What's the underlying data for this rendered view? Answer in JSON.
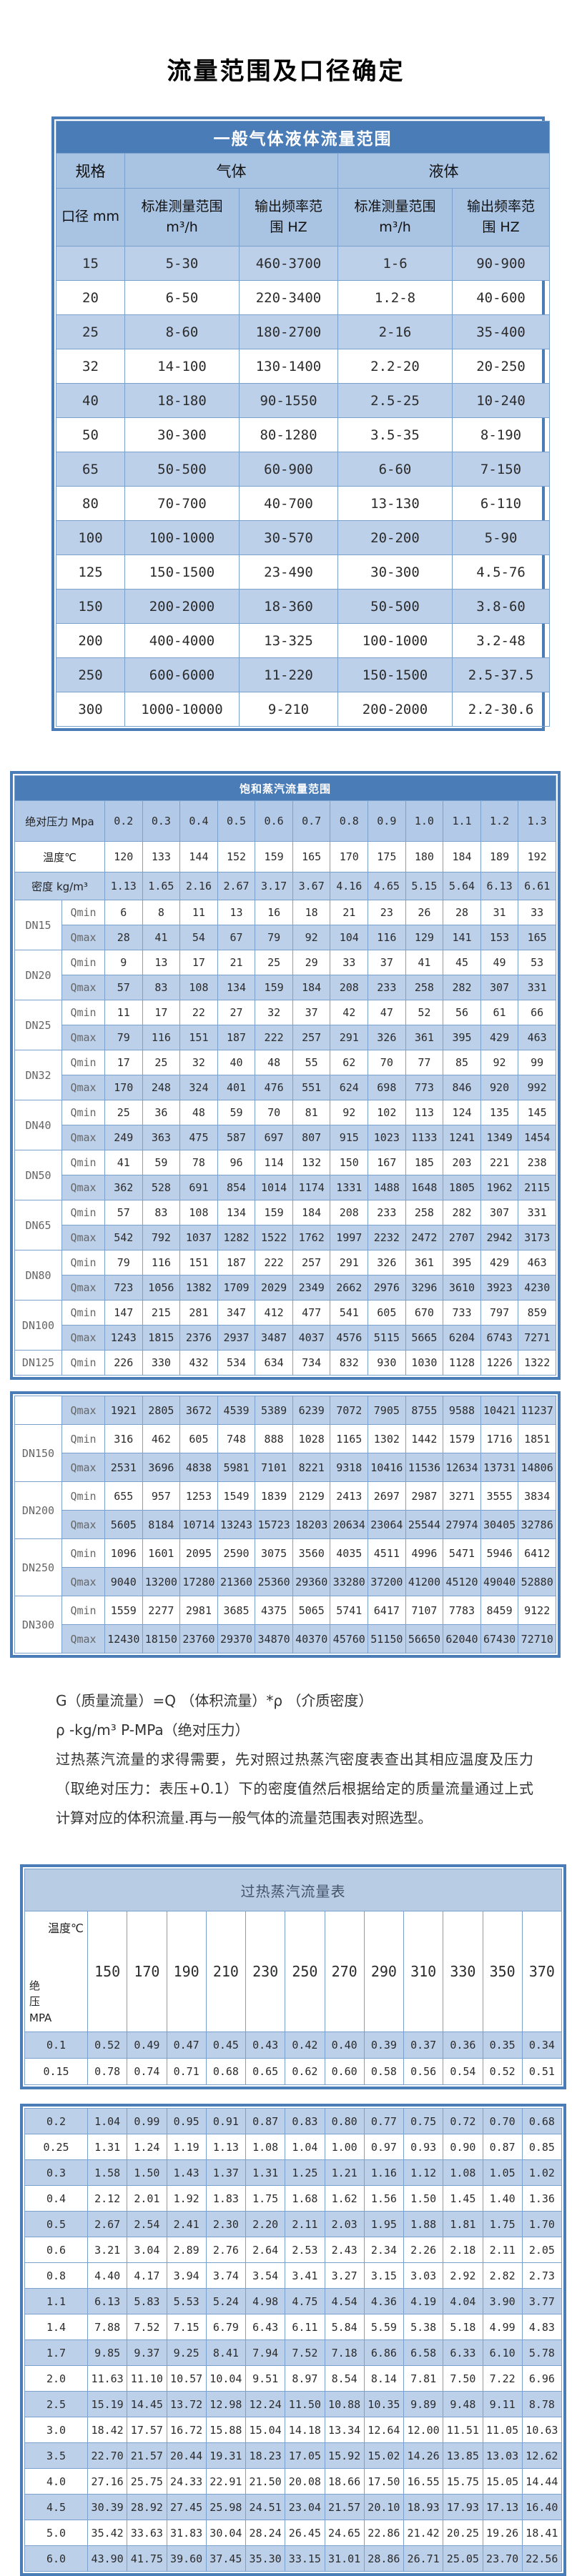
{
  "page_title": "流量范围及口径确定",
  "table_gas_liquid": {
    "title": "一般气体液体流量范围",
    "spec_label": "规格",
    "gas_label": "气体",
    "liquid_label": "液体",
    "diameter_label": "口径 mm",
    "col_headers": [
      "标准测量范围\nm³/h",
      "输出频率范\n围 HZ",
      "标准测量范围\nm³/h",
      "输出频率范\n围 HZ"
    ],
    "rows": [
      [
        "15",
        "5-30",
        "460-3700",
        "1-6",
        "90-900"
      ],
      [
        "20",
        "6-50",
        "220-3400",
        "1.2-8",
        "40-600"
      ],
      [
        "25",
        "8-60",
        "180-2700",
        "2-16",
        "35-400"
      ],
      [
        "32",
        "14-100",
        "130-1400",
        "2.2-20",
        "20-250"
      ],
      [
        "40",
        "18-180",
        "90-1550",
        "2.5-25",
        "10-240"
      ],
      [
        "50",
        "30-300",
        "80-1280",
        "3.5-35",
        "8-190"
      ],
      [
        "65",
        "50-500",
        "60-900",
        "6-60",
        "7-150"
      ],
      [
        "80",
        "70-700",
        "40-700",
        "13-130",
        "6-110"
      ],
      [
        "100",
        "100-1000",
        "30-570",
        "20-200",
        "5-90"
      ],
      [
        "125",
        "150-1500",
        "23-490",
        "30-300",
        "4.5-76"
      ],
      [
        "150",
        "200-2000",
        "18-360",
        "50-500",
        "3.8-60"
      ],
      [
        "200",
        "400-4000",
        "13-325",
        "100-1000",
        "3.2-48"
      ],
      [
        "250",
        "600-6000",
        "11-220",
        "150-1500",
        "2.5-37.5"
      ],
      [
        "300",
        "1000-10000",
        "9-210",
        "200-2000",
        "2.2-30.6"
      ]
    ]
  },
  "table_saturated": {
    "title": "饱和蒸汽流量范围",
    "pressure_label": "绝对压力 Mpa",
    "pressures": [
      "0.2",
      "0.3",
      "0.4",
      "0.5",
      "0.6",
      "0.7",
      "0.8",
      "0.9",
      "1.0",
      "1.1",
      "1.2",
      "1.3"
    ],
    "temp_label": "温度℃",
    "temps": [
      "120",
      "133",
      "144",
      "152",
      "159",
      "165",
      "170",
      "175",
      "180",
      "184",
      "189",
      "192"
    ],
    "density_label": "密度 kg/m³",
    "densities": [
      "1.13",
      "1.65",
      "2.16",
      "2.67",
      "3.17",
      "3.67",
      "4.16",
      "4.65",
      "5.15",
      "5.64",
      "6.13",
      "6.61"
    ],
    "qmin_label": "Qmin",
    "qmax_label": "Qmax",
    "block1": [
      {
        "dn": "DN15",
        "qmin": [
          "6",
          "8",
          "11",
          "13",
          "16",
          "18",
          "21",
          "23",
          "26",
          "28",
          "31",
          "33"
        ],
        "qmax": [
          "28",
          "41",
          "54",
          "67",
          "79",
          "92",
          "104",
          "116",
          "129",
          "141",
          "153",
          "165"
        ]
      },
      {
        "dn": "DN20",
        "qmin": [
          "9",
          "13",
          "17",
          "21",
          "25",
          "29",
          "33",
          "37",
          "41",
          "45",
          "49",
          "53"
        ],
        "qmax": [
          "57",
          "83",
          "108",
          "134",
          "159",
          "184",
          "208",
          "233",
          "258",
          "282",
          "307",
          "331"
        ]
      },
      {
        "dn": "DN25",
        "qmin": [
          "11",
          "17",
          "22",
          "27",
          "32",
          "37",
          "42",
          "47",
          "52",
          "56",
          "61",
          "66"
        ],
        "qmax": [
          "79",
          "116",
          "151",
          "187",
          "222",
          "257",
          "291",
          "326",
          "361",
          "395",
          "429",
          "463"
        ]
      },
      {
        "dn": "DN32",
        "qmin": [
          "17",
          "25",
          "32",
          "40",
          "48",
          "55",
          "62",
          "70",
          "77",
          "85",
          "92",
          "99"
        ],
        "qmax": [
          "170",
          "248",
          "324",
          "401",
          "476",
          "551",
          "624",
          "698",
          "773",
          "846",
          "920",
          "992"
        ]
      },
      {
        "dn": "DN40",
        "qmin": [
          "25",
          "36",
          "48",
          "59",
          "70",
          "81",
          "92",
          "102",
          "113",
          "124",
          "135",
          "145"
        ],
        "qmax": [
          "249",
          "363",
          "475",
          "587",
          "697",
          "807",
          "915",
          "1023",
          "1133",
          "1241",
          "1349",
          "1454"
        ]
      },
      {
        "dn": "DN50",
        "qmin": [
          "41",
          "59",
          "78",
          "96",
          "114",
          "132",
          "150",
          "167",
          "185",
          "203",
          "221",
          "238"
        ],
        "qmax": [
          "362",
          "528",
          "691",
          "854",
          "1014",
          "1174",
          "1331",
          "1488",
          "1648",
          "1805",
          "1962",
          "2115"
        ]
      },
      {
        "dn": "DN65",
        "qmin": [
          "57",
          "83",
          "108",
          "134",
          "159",
          "184",
          "208",
          "233",
          "258",
          "282",
          "307",
          "331"
        ],
        "qmax": [
          "542",
          "792",
          "1037",
          "1282",
          "1522",
          "1762",
          "1997",
          "2232",
          "2472",
          "2707",
          "2942",
          "3173"
        ]
      },
      {
        "dn": "DN80",
        "qmin": [
          "79",
          "116",
          "151",
          "187",
          "222",
          "257",
          "291",
          "326",
          "361",
          "395",
          "429",
          "463"
        ],
        "qmax": [
          "723",
          "1056",
          "1382",
          "1709",
          "2029",
          "2349",
          "2662",
          "2976",
          "3296",
          "3610",
          "3923",
          "4230"
        ]
      },
      {
        "dn": "DN100",
        "qmin": [
          "147",
          "215",
          "281",
          "347",
          "412",
          "477",
          "541",
          "605",
          "670",
          "733",
          "797",
          "859"
        ],
        "qmax": [
          "1243",
          "1815",
          "2376",
          "2937",
          "3487",
          "4037",
          "4576",
          "5115",
          "5665",
          "6204",
          "6743",
          "7271"
        ]
      },
      {
        "dn": "DN125",
        "qmin": [
          "226",
          "330",
          "432",
          "534",
          "634",
          "734",
          "832",
          "930",
          "1030",
          "1128",
          "1226",
          "1322"
        ]
      }
    ],
    "block2": [
      {
        "dn": "",
        "qmax": [
          "1921",
          "2805",
          "3672",
          "4539",
          "5389",
          "6239",
          "7072",
          "7905",
          "8755",
          "9588",
          "10421",
          "11237"
        ]
      },
      {
        "dn": "DN150",
        "qmin": [
          "316",
          "462",
          "605",
          "748",
          "888",
          "1028",
          "1165",
          "1302",
          "1442",
          "1579",
          "1716",
          "1851"
        ],
        "qmax": [
          "2531",
          "3696",
          "4838",
          "5981",
          "7101",
          "8221",
          "9318",
          "10416",
          "11536",
          "12634",
          "13731",
          "14806"
        ]
      },
      {
        "dn": "DN200",
        "qmin": [
          "655",
          "957",
          "1253",
          "1549",
          "1839",
          "2129",
          "2413",
          "2697",
          "2987",
          "3271",
          "3555",
          "3834"
        ],
        "qmax": [
          "5605",
          "8184",
          "10714",
          "13243",
          "15723",
          "18203",
          "20634",
          "23064",
          "25544",
          "27974",
          "30405",
          "32786"
        ]
      },
      {
        "dn": "DN250",
        "qmin": [
          "1096",
          "1601",
          "2095",
          "2590",
          "3075",
          "3560",
          "4035",
          "4511",
          "4996",
          "5471",
          "5946",
          "6412"
        ],
        "qmax": [
          "9040",
          "13200",
          "17280",
          "21360",
          "25360",
          "29360",
          "33280",
          "37200",
          "41200",
          "45120",
          "49040",
          "52880"
        ]
      },
      {
        "dn": "DN300",
        "qmin": [
          "1559",
          "2277",
          "2981",
          "3685",
          "4375",
          "5065",
          "5741",
          "6417",
          "7107",
          "7783",
          "8459",
          "9122"
        ],
        "qmax": [
          "12430",
          "18150",
          "23760",
          "29370",
          "34870",
          "40370",
          "45760",
          "51150",
          "56650",
          "62040",
          "67430",
          "72710"
        ]
      }
    ]
  },
  "notes": [
    "G（质量流量）=Q （体积流量）*ρ （介质密度）",
    "ρ -kg/m³ P-MPa（绝对压力）",
    "过热蒸汽流量的求得需要，先对照过热蒸汽密度表查出其相应温度及压力（取绝对压力：表压+0.1）下的密度值然后根据给定的质量流量通过上式计算对应的体积流量.再与一般气体的流量范围表对照选型。"
  ],
  "table_superheated": {
    "title": "过热蒸汽流量表",
    "corner_top": "温度℃",
    "corner_bottom": "绝\n压\nMPA",
    "temps": [
      "150",
      "170",
      "190",
      "210",
      "230",
      "250",
      "270",
      "290",
      "310",
      "330",
      "350",
      "370"
    ],
    "block1_rows": [
      {
        "p": "0.1",
        "v": [
          "0.52",
          "0.49",
          "0.47",
          "0.45",
          "0.43",
          "0.42",
          "0.40",
          "0.39",
          "0.37",
          "0.36",
          "0.35",
          "0.34"
        ]
      },
      {
        "p": "0.15",
        "v": [
          "0.78",
          "0.74",
          "0.71",
          "0.68",
          "0.65",
          "0.62",
          "0.60",
          "0.58",
          "0.56",
          "0.54",
          "0.52",
          "0.51"
        ]
      }
    ],
    "block2_rows": [
      {
        "p": "0.2",
        "v": [
          "1.04",
          "0.99",
          "0.95",
          "0.91",
          "0.87",
          "0.83",
          "0.80",
          "0.77",
          "0.75",
          "0.72",
          "0.70",
          "0.68"
        ]
      },
      {
        "p": "0.25",
        "v": [
          "1.31",
          "1.24",
          "1.19",
          "1.13",
          "1.08",
          "1.04",
          "1.00",
          "0.97",
          "0.93",
          "0.90",
          "0.87",
          "0.85"
        ]
      },
      {
        "p": "0.3",
        "v": [
          "1.58",
          "1.50",
          "1.43",
          "1.37",
          "1.31",
          "1.25",
          "1.21",
          "1.16",
          "1.12",
          "1.08",
          "1.05",
          "1.02"
        ]
      },
      {
        "p": "0.4",
        "v": [
          "2.12",
          "2.01",
          "1.92",
          "1.83",
          "1.75",
          "1.68",
          "1.62",
          "1.56",
          "1.50",
          "1.45",
          "1.40",
          "1.36"
        ]
      },
      {
        "p": "0.5",
        "v": [
          "2.67",
          "2.54",
          "2.41",
          "2.30",
          "2.20",
          "2.11",
          "2.03",
          "1.95",
          "1.88",
          "1.81",
          "1.75",
          "1.70"
        ]
      },
      {
        "p": "0.6",
        "v": [
          "3.21",
          "3.04",
          "2.89",
          "2.76",
          "2.64",
          "2.53",
          "2.43",
          "2.34",
          "2.26",
          "2.18",
          "2.11",
          "2.05"
        ]
      },
      {
        "p": "0.8",
        "v": [
          "4.40",
          "4.17",
          "3.94",
          "3.74",
          "3.54",
          "3.41",
          "3.27",
          "3.15",
          "3.03",
          "2.92",
          "2.82",
          "2.73"
        ]
      },
      {
        "p": "1.1",
        "v": [
          "6.13",
          "5.83",
          "5.53",
          "5.24",
          "4.98",
          "4.75",
          "4.54",
          "4.36",
          "4.19",
          "4.04",
          "3.90",
          "3.77"
        ]
      },
      {
        "p": "1.4",
        "v": [
          "7.88",
          "7.52",
          "7.15",
          "6.79",
          "6.43",
          "6.11",
          "5.84",
          "5.59",
          "5.38",
          "5.18",
          "4.99",
          "4.83"
        ]
      },
      {
        "p": "1.7",
        "v": [
          "9.85",
          "9.37",
          "9.25",
          "8.41",
          "7.94",
          "7.52",
          "7.18",
          "6.86",
          "6.58",
          "6.33",
          "6.10",
          "5.78"
        ]
      },
      {
        "p": "2.0",
        "v": [
          "11.63",
          "11.10",
          "10.57",
          "10.04",
          "9.51",
          "8.97",
          "8.54",
          "8.14",
          "7.81",
          "7.50",
          "7.22",
          "6.96"
        ]
      },
      {
        "p": "2.5",
        "v": [
          "15.19",
          "14.45",
          "13.72",
          "12.98",
          "12.24",
          "11.50",
          "10.88",
          "10.35",
          "9.89",
          "9.48",
          "9.11",
          "8.78"
        ]
      },
      {
        "p": "3.0",
        "v": [
          "18.42",
          "17.57",
          "16.72",
          "15.88",
          "15.04",
          "14.18",
          "13.34",
          "12.64",
          "12.00",
          "11.51",
          "11.05",
          "10.63"
        ]
      },
      {
        "p": "3.5",
        "v": [
          "22.70",
          "21.57",
          "20.44",
          "19.31",
          "18.23",
          "17.05",
          "15.92",
          "15.02",
          "14.26",
          "13.85",
          "13.03",
          "12.62"
        ]
      },
      {
        "p": "4.0",
        "v": [
          "27.16",
          "25.75",
          "24.33",
          "22.91",
          "21.50",
          "20.08",
          "18.66",
          "17.50",
          "16.55",
          "15.75",
          "15.05",
          "14.44"
        ]
      },
      {
        "p": "4.5",
        "v": [
          "30.39",
          "28.92",
          "27.45",
          "25.98",
          "24.51",
          "23.04",
          "21.57",
          "20.10",
          "18.93",
          "17.93",
          "17.13",
          "16.40"
        ]
      },
      {
        "p": "5.0",
        "v": [
          "35.42",
          "33.63",
          "31.83",
          "30.04",
          "28.24",
          "26.45",
          "24.65",
          "22.86",
          "21.42",
          "20.25",
          "19.26",
          "18.41"
        ]
      },
      {
        "p": "6.0",
        "v": [
          "43.90",
          "41.75",
          "39.60",
          "37.45",
          "35.30",
          "33.15",
          "31.01",
          "28.86",
          "26.71",
          "25.05",
          "23.70",
          "22.56"
        ]
      }
    ]
  },
  "colors": {
    "title_bar": "#4a7cb8",
    "header_fill": "#a9c3e3",
    "stripe_fill": "#bdd0ea",
    "border": "#4a7cb8",
    "cell_border": "#7aa1ce"
  }
}
